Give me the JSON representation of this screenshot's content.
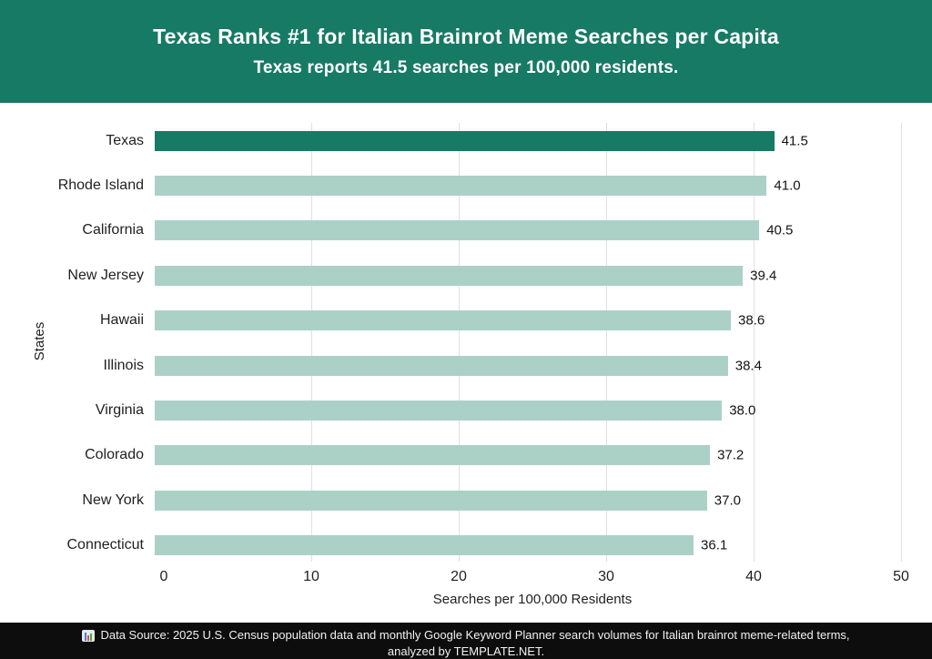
{
  "header": {
    "title": "Texas Ranks #1 for Italian Brainrot Meme Searches per Capita",
    "subtitle": "Texas reports 41.5 searches per 100,000 residents.",
    "background_color": "#177A65",
    "text_color": "#FFFFFF"
  },
  "chart_data": {
    "type": "bar",
    "orientation": "horizontal",
    "categories": [
      "Texas",
      "Rhode Island",
      "California",
      "New Jersey",
      "Hawaii",
      "Illinois",
      "Virginia",
      "Colorado",
      "New York",
      "Connecticut"
    ],
    "values": [
      41.5,
      41.0,
      40.5,
      39.4,
      38.6,
      38.4,
      38.0,
      37.2,
      37.0,
      36.1
    ],
    "value_labels": [
      "41.5",
      "41.0",
      "40.5",
      "39.4",
      "38.6",
      "38.4",
      "38.0",
      "37.2",
      "37.0",
      "36.1"
    ],
    "xlabel": "Searches per 100,000 Residents",
    "ylabel": "States",
    "xlim": [
      0,
      50
    ],
    "x_ticks": [
      0,
      10,
      20,
      30,
      40,
      50
    ],
    "grid": "vertical",
    "legend": "none",
    "highlight_index": 0,
    "highlight_color": "#177A65",
    "bar_color": "#ABD1C7",
    "gridline_color": "#E0E0E0"
  },
  "footer": {
    "icon": "bar-chart-icon",
    "line1": "Data Source: 2025 U.S. Census population data and monthly Google Keyword Planner search volumes for Italian brainrot meme-related terms,",
    "line2": "analyzed by TEMPLATE.NET.",
    "background_color": "#0D0D0D",
    "text_color": "#F2F2F2"
  }
}
